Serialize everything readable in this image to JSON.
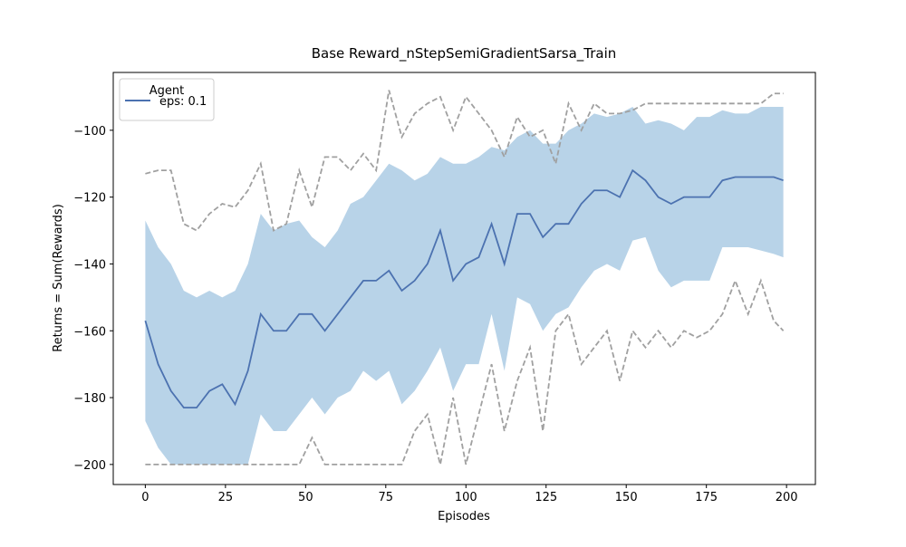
{
  "chart_data": {
    "type": "line",
    "title": "Base Reward_nStepSemiGradientSarsa_Train",
    "x_label": "Episodes",
    "y_label": "Returns = Sum(Rewards)",
    "legend_title": "Agent",
    "legend": "upper left",
    "x": [
      0,
      4,
      8,
      12,
      16,
      20,
      24,
      28,
      32,
      36,
      40,
      44,
      48,
      52,
      56,
      60,
      64,
      68,
      72,
      76,
      80,
      84,
      88,
      92,
      96,
      100,
      104,
      108,
      112,
      116,
      120,
      124,
      128,
      132,
      136,
      140,
      144,
      148,
      152,
      156,
      160,
      164,
      168,
      172,
      176,
      180,
      184,
      188,
      192,
      196,
      199
    ],
    "series": [
      {
        "name": "eps: 0.1",
        "color": "#4c72b0",
        "values": [
          -157,
          -170,
          -178,
          -183,
          -183,
          -178,
          -176,
          -182,
          -172,
          -155,
          -160,
          -160,
          -155,
          -155,
          -160,
          -155,
          -150,
          -145,
          -145,
          -142,
          -148,
          -145,
          -140,
          -130,
          -145,
          -140,
          -138,
          -128,
          -140,
          -125,
          -125,
          -132,
          -128,
          -128,
          -122,
          -118,
          -118,
          -120,
          -112,
          -115,
          -120,
          -122,
          -120,
          -120,
          -120,
          -115,
          -114,
          -114,
          -114,
          -114,
          -115
        ]
      }
    ],
    "band": {
      "color": "#b8d3e8",
      "upper": [
        -127,
        -135,
        -140,
        -148,
        -150,
        -148,
        -150,
        -148,
        -140,
        -125,
        -130,
        -128,
        -127,
        -132,
        -135,
        -130,
        -122,
        -120,
        -115,
        -110,
        -112,
        -115,
        -113,
        -108,
        -110,
        -110,
        -108,
        -105,
        -106,
        -102,
        -100,
        -104,
        -104,
        -100,
        -98,
        -95,
        -96,
        -95,
        -93,
        -98,
        -97,
        -98,
        -100,
        -96,
        -96,
        -94,
        -95,
        -95,
        -93,
        -93,
        -93
      ],
      "lower": [
        -187,
        -195,
        -200,
        -200,
        -200,
        -200,
        -200,
        -200,
        -200,
        -185,
        -190,
        -190,
        -185,
        -180,
        -185,
        -180,
        -178,
        -172,
        -175,
        -172,
        -182,
        -178,
        -172,
        -165,
        -178,
        -170,
        -170,
        -155,
        -172,
        -150,
        -152,
        -160,
        -155,
        -153,
        -147,
        -142,
        -140,
        -142,
        -133,
        -132,
        -142,
        -147,
        -145,
        -145,
        -145,
        -135,
        -135,
        -135,
        -136,
        -137,
        -138
      ]
    },
    "envelope": {
      "color": "#a0a0a0",
      "upper": [
        -113,
        -112,
        -112,
        -128,
        -130,
        -125,
        -122,
        -123,
        -118,
        -110,
        -130,
        -128,
        -112,
        -123,
        -108,
        -108,
        -112,
        -107,
        -112,
        -88,
        -102,
        -95,
        -92,
        -90,
        -100,
        -90,
        -95,
        -100,
        -108,
        -96,
        -102,
        -100,
        -110,
        -92,
        -100,
        -92,
        -95,
        -95,
        -94,
        -92,
        -92,
        -92,
        -92,
        -92,
        -92,
        -92,
        -92,
        -92,
        -92,
        -89,
        -89
      ],
      "lower": [
        -200,
        -200,
        -200,
        -200,
        -200,
        -200,
        -200,
        -200,
        -200,
        -200,
        -200,
        -200,
        -200,
        -192,
        -200,
        -200,
        -200,
        -200,
        -200,
        -200,
        -200,
        -190,
        -185,
        -200,
        -180,
        -200,
        -185,
        -170,
        -190,
        -175,
        -165,
        -190,
        -160,
        -155,
        -170,
        -165,
        -160,
        -175,
        -160,
        -165,
        -160,
        -165,
        -160,
        -162,
        -160,
        -155,
        -145,
        -155,
        -145,
        -157,
        -160
      ]
    },
    "xlim": [
      -10,
      209
    ],
    "ylim": [
      -206,
      -82.7
    ],
    "xticks": [
      0,
      25,
      50,
      75,
      100,
      125,
      150,
      175,
      200
    ],
    "yticks": [
      {
        "value": -200,
        "label": "−200"
      },
      {
        "value": -180,
        "label": "−180"
      },
      {
        "value": -160,
        "label": "−160"
      },
      {
        "value": -140,
        "label": "−140"
      },
      {
        "value": -120,
        "label": "−120"
      },
      {
        "value": -100,
        "label": "−100"
      }
    ],
    "grid": false
  }
}
